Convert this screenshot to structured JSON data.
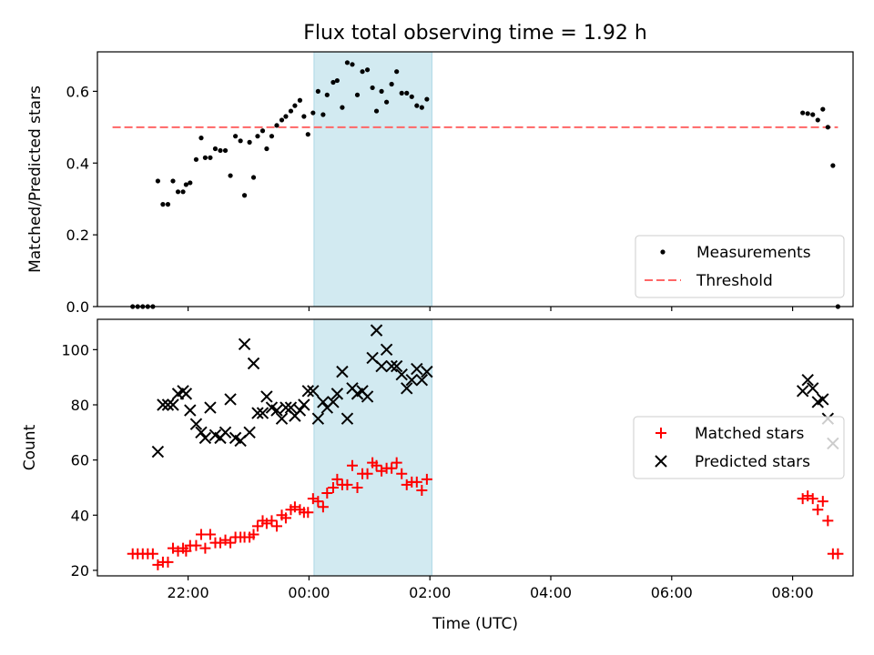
{
  "title": "Flux total observing time = 1.92 h",
  "xlabel": "Time (UTC)",
  "colors": {
    "measurement": "#000000",
    "threshold": "#ff6666",
    "matched": "#ff0000",
    "predicted": "#000000",
    "highlight": "#add8e6"
  },
  "chart_data": [
    {
      "type": "scatter",
      "ylabel": "Matched/Predicted stars",
      "xlim": [
        "20:30",
        "09:00"
      ],
      "ylim": [
        0,
        0.71
      ],
      "y_ticks": [
        0.0,
        0.2,
        0.4,
        0.6
      ],
      "highlight_span": [
        "00:05",
        "02:02"
      ],
      "legend": {
        "placement": "lower-right",
        "entries": [
          "Measurements",
          "Threshold"
        ]
      },
      "threshold": {
        "name": "Threshold",
        "y": 0.5,
        "x_range": [
          "20:45",
          "08:45"
        ]
      },
      "series": [
        {
          "name": "Measurements",
          "points": [
            [
              "21:05",
              0.0
            ],
            [
              "21:10",
              0.0
            ],
            [
              "21:15",
              0.0
            ],
            [
              "21:20",
              0.0
            ],
            [
              "21:25",
              0.0
            ],
            [
              "21:30",
              0.35
            ],
            [
              "21:35",
              0.285
            ],
            [
              "21:40",
              0.285
            ],
            [
              "21:45",
              0.35
            ],
            [
              "21:50",
              0.32
            ],
            [
              "21:55",
              0.32
            ],
            [
              "21:58",
              0.34
            ],
            [
              "22:02",
              0.345
            ],
            [
              "22:08",
              0.41
            ],
            [
              "22:13",
              0.47
            ],
            [
              "22:17",
              0.415
            ],
            [
              "22:22",
              0.415
            ],
            [
              "22:27",
              0.44
            ],
            [
              "22:32",
              0.435
            ],
            [
              "22:37",
              0.435
            ],
            [
              "22:42",
              0.365
            ],
            [
              "22:47",
              0.475
            ],
            [
              "22:52",
              0.462
            ],
            [
              "22:56",
              0.31
            ],
            [
              "23:01",
              0.458
            ],
            [
              "23:05",
              0.36
            ],
            [
              "23:09",
              0.475
            ],
            [
              "23:14",
              0.49
            ],
            [
              "23:18",
              0.44
            ],
            [
              "23:23",
              0.475
            ],
            [
              "23:28",
              0.505
            ],
            [
              "23:33",
              0.52
            ],
            [
              "23:37",
              0.53
            ],
            [
              "23:42",
              0.545
            ],
            [
              "23:46",
              0.56
            ],
            [
              "23:51",
              0.575
            ],
            [
              "23:55",
              0.53
            ],
            [
              "23:59",
              0.48
            ],
            [
              "00:04",
              0.54
            ],
            [
              "00:09",
              0.6
            ],
            [
              "00:14",
              0.535
            ],
            [
              "00:18",
              0.59
            ],
            [
              "00:24",
              0.625
            ],
            [
              "00:28",
              0.63
            ],
            [
              "00:33",
              0.555
            ],
            [
              "00:38",
              0.68
            ],
            [
              "00:43",
              0.675
            ],
            [
              "00:48",
              0.59
            ],
            [
              "00:53",
              0.655
            ],
            [
              "00:58",
              0.66
            ],
            [
              "01:03",
              0.61
            ],
            [
              "01:07",
              0.545
            ],
            [
              "01:12",
              0.6
            ],
            [
              "01:17",
              0.57
            ],
            [
              "01:22",
              0.62
            ],
            [
              "01:27",
              0.655
            ],
            [
              "01:32",
              0.595
            ],
            [
              "01:37",
              0.595
            ],
            [
              "01:42",
              0.585
            ],
            [
              "01:47",
              0.56
            ],
            [
              "01:52",
              0.555
            ],
            [
              "01:57",
              0.578
            ],
            [
              "08:10",
              0.54
            ],
            [
              "08:15",
              0.538
            ],
            [
              "08:20",
              0.535
            ],
            [
              "08:25",
              0.52
            ],
            [
              "08:30",
              0.55
            ],
            [
              "08:35",
              0.5
            ],
            [
              "08:40",
              0.393
            ],
            [
              "08:45",
              0.0
            ]
          ]
        }
      ]
    },
    {
      "type": "scatter",
      "xlabel": "Time (UTC)",
      "ylabel": "Count",
      "xlim": [
        "20:30",
        "09:00"
      ],
      "ylim": [
        18,
        111
      ],
      "y_ticks": [
        20,
        40,
        60,
        80,
        100
      ],
      "x_ticks": [
        "22:00",
        "00:00",
        "02:00",
        "04:00",
        "06:00",
        "08:00"
      ],
      "highlight_span": [
        "00:05",
        "02:02"
      ],
      "legend": {
        "placement": "right",
        "entries": [
          "Matched stars",
          "Predicted stars"
        ]
      },
      "series": [
        {
          "name": "Matched stars",
          "marker": "plus",
          "points": [
            [
              "21:05",
              26
            ],
            [
              "21:10",
              26
            ],
            [
              "21:15",
              26
            ],
            [
              "21:20",
              26
            ],
            [
              "21:25",
              26
            ],
            [
              "21:30",
              22
            ],
            [
              "21:35",
              23
            ],
            [
              "21:40",
              23
            ],
            [
              "21:45",
              28
            ],
            [
              "21:50",
              27
            ],
            [
              "21:55",
              28
            ],
            [
              "21:58",
              27
            ],
            [
              "22:02",
              29
            ],
            [
              "22:08",
              29
            ],
            [
              "22:13",
              33
            ],
            [
              "22:17",
              28
            ],
            [
              "22:22",
              33
            ],
            [
              "22:27",
              30
            ],
            [
              "22:32",
              30
            ],
            [
              "22:37",
              31
            ],
            [
              "22:42",
              30
            ],
            [
              "22:47",
              32
            ],
            [
              "22:52",
              32
            ],
            [
              "22:56",
              32
            ],
            [
              "23:01",
              32
            ],
            [
              "23:05",
              33
            ],
            [
              "23:09",
              36
            ],
            [
              "23:14",
              38
            ],
            [
              "23:18",
              37
            ],
            [
              "23:23",
              38
            ],
            [
              "23:28",
              36
            ],
            [
              "23:33",
              40
            ],
            [
              "23:37",
              39
            ],
            [
              "23:42",
              42
            ],
            [
              "23:46",
              43
            ],
            [
              "23:51",
              42
            ],
            [
              "23:55",
              41
            ],
            [
              "23:59",
              41
            ],
            [
              "00:04",
              46
            ],
            [
              "00:09",
              45
            ],
            [
              "00:14",
              43
            ],
            [
              "00:18",
              48
            ],
            [
              "00:24",
              50
            ],
            [
              "00:28",
              53
            ],
            [
              "00:33",
              51
            ],
            [
              "00:38",
              51
            ],
            [
              "00:43",
              58
            ],
            [
              "00:48",
              50
            ],
            [
              "00:53",
              55
            ],
            [
              "00:58",
              55
            ],
            [
              "01:03",
              59
            ],
            [
              "01:07",
              58
            ],
            [
              "01:12",
              56
            ],
            [
              "01:17",
              57
            ],
            [
              "01:22",
              57
            ],
            [
              "01:27",
              59
            ],
            [
              "01:32",
              55
            ],
            [
              "01:37",
              51
            ],
            [
              "01:42",
              52
            ],
            [
              "01:47",
              52
            ],
            [
              "01:52",
              49
            ],
            [
              "01:57",
              53
            ],
            [
              "08:10",
              46
            ],
            [
              "08:15",
              47
            ],
            [
              "08:20",
              46
            ],
            [
              "08:25",
              42
            ],
            [
              "08:30",
              45
            ],
            [
              "08:35",
              38
            ],
            [
              "08:40",
              26
            ],
            [
              "08:45",
              26
            ]
          ]
        },
        {
          "name": "Predicted stars",
          "marker": "x",
          "points": [
            [
              "21:30",
              63
            ],
            [
              "21:35",
              80
            ],
            [
              "21:40",
              80
            ],
            [
              "21:45",
              80
            ],
            [
              "21:50",
              84
            ],
            [
              "21:55",
              85
            ],
            [
              "21:58",
              84
            ],
            [
              "22:02",
              78
            ],
            [
              "22:08",
              73
            ],
            [
              "22:13",
              70
            ],
            [
              "22:17",
              68
            ],
            [
              "22:22",
              79
            ],
            [
              "22:27",
              69
            ],
            [
              "22:32",
              68
            ],
            [
              "22:37",
              70
            ],
            [
              "22:42",
              82
            ],
            [
              "22:47",
              68
            ],
            [
              "22:52",
              67
            ],
            [
              "22:56",
              102
            ],
            [
              "23:01",
              70
            ],
            [
              "23:05",
              95
            ],
            [
              "23:09",
              77
            ],
            [
              "23:14",
              77
            ],
            [
              "23:18",
              83
            ],
            [
              "23:23",
              79
            ],
            [
              "23:28",
              78
            ],
            [
              "23:33",
              75
            ],
            [
              "23:37",
              79
            ],
            [
              "23:42",
              79
            ],
            [
              "23:46",
              76
            ],
            [
              "23:51",
              78
            ],
            [
              "23:55",
              80
            ],
            [
              "23:59",
              85
            ],
            [
              "00:04",
              85
            ],
            [
              "00:09",
              75
            ],
            [
              "00:14",
              81
            ],
            [
              "00:18",
              79
            ],
            [
              "00:24",
              81
            ],
            [
              "00:28",
              84
            ],
            [
              "00:33",
              92
            ],
            [
              "00:38",
              75
            ],
            [
              "00:43",
              86
            ],
            [
              "00:48",
              84
            ],
            [
              "00:53",
              85
            ],
            [
              "00:58",
              83
            ],
            [
              "01:03",
              97
            ],
            [
              "01:07",
              107
            ],
            [
              "01:12",
              94
            ],
            [
              "01:17",
              100
            ],
            [
              "01:22",
              94
            ],
            [
              "01:27",
              94
            ],
            [
              "01:32",
              91
            ],
            [
              "01:37",
              86
            ],
            [
              "01:42",
              89
            ],
            [
              "01:47",
              93
            ],
            [
              "01:52",
              89
            ],
            [
              "01:57",
              92
            ],
            [
              "08:10",
              85
            ],
            [
              "08:15",
              89
            ],
            [
              "08:20",
              86
            ],
            [
              "08:25",
              81
            ],
            [
              "08:30",
              82
            ],
            [
              "08:35",
              75
            ],
            [
              "08:40",
              66
            ]
          ]
        }
      ]
    }
  ]
}
